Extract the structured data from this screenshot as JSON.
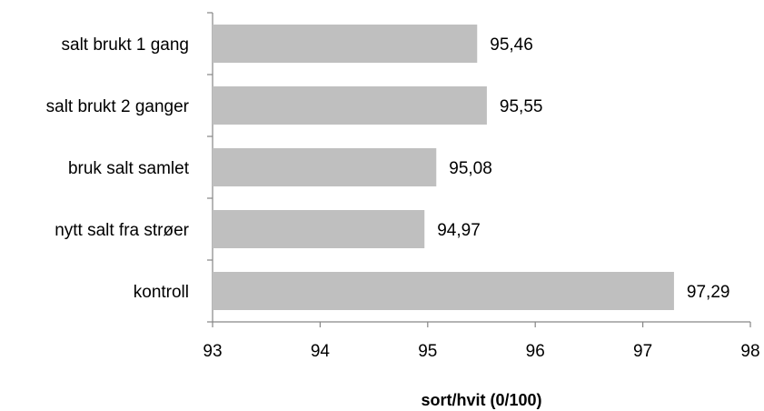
{
  "chart_data": {
    "type": "bar",
    "orientation": "horizontal",
    "title": "",
    "xlabel": "sort/hvit (0/100)",
    "ylabel": "",
    "categories": [
      "salt brukt 1 gang",
      "salt brukt 2 ganger",
      "bruk salt samlet",
      "nytt salt fra strøer",
      "kontroll"
    ],
    "values": [
      95.46,
      95.55,
      95.08,
      94.97,
      97.29
    ],
    "data_labels": [
      "95,46",
      "95,55",
      "95,08",
      "94,97",
      "97,29"
    ],
    "xlim": [
      93,
      98
    ],
    "x_ticks": [
      93,
      94,
      95,
      96,
      97,
      98
    ],
    "x_tick_labels": [
      "93",
      "94",
      "95",
      "96",
      "97",
      "98"
    ],
    "bar_color": "#bfbfbf",
    "axis_color": "#868686",
    "grid": false,
    "legend": "none"
  }
}
